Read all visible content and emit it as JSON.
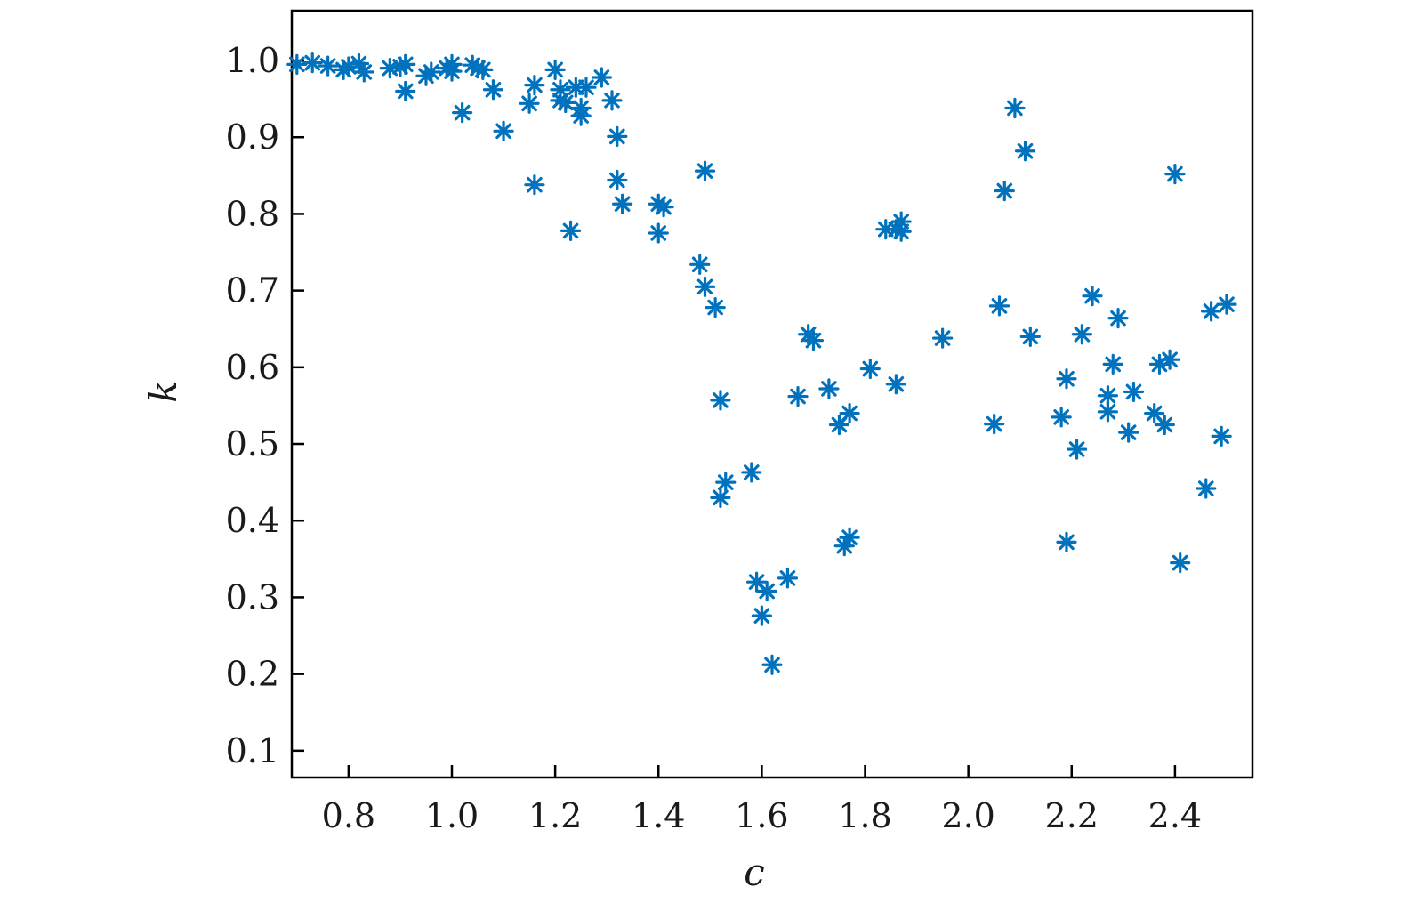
{
  "chart_data": {
    "type": "scatter",
    "title": "",
    "xlabel": "c",
    "ylabel": "k",
    "xlim": [
      0.69,
      2.55
    ],
    "ylim": [
      0.065,
      1.065
    ],
    "grid": false,
    "marker": "asterisk",
    "color": "#0072bd",
    "xticks": [
      0.8,
      1.0,
      1.2,
      1.4,
      1.6,
      1.8,
      2.0,
      2.2,
      2.4
    ],
    "xtick_labels": [
      "0.8",
      "1.0",
      "1.2",
      "1.4",
      "1.6",
      "1.8",
      "2.0",
      "2.2",
      "2.4"
    ],
    "yticks": [
      0.1,
      0.2,
      0.3,
      0.4,
      0.5,
      0.6,
      0.7,
      0.8,
      0.9,
      1.0
    ],
    "ytick_labels": [
      "0.1",
      "0.2",
      "0.3",
      "0.4",
      "0.5",
      "0.6",
      "0.7",
      "0.8",
      "0.9",
      "1.0"
    ],
    "points": [
      [
        0.7,
        0.995
      ],
      [
        0.73,
        0.997
      ],
      [
        0.76,
        0.993
      ],
      [
        0.79,
        0.988
      ],
      [
        0.8,
        0.992
      ],
      [
        0.82,
        0.996
      ],
      [
        0.83,
        0.985
      ],
      [
        0.88,
        0.99
      ],
      [
        0.9,
        0.992
      ],
      [
        0.91,
        0.995
      ],
      [
        0.91,
        0.96
      ],
      [
        0.95,
        0.98
      ],
      [
        0.96,
        0.985
      ],
      [
        0.99,
        0.99
      ],
      [
        1.0,
        0.986
      ],
      [
        1.0,
        0.995
      ],
      [
        1.02,
        0.932
      ],
      [
        1.04,
        0.994
      ],
      [
        1.05,
        0.99
      ],
      [
        1.06,
        0.988
      ],
      [
        1.08,
        0.962
      ],
      [
        1.1,
        0.908
      ],
      [
        1.15,
        0.944
      ],
      [
        1.16,
        0.968
      ],
      [
        1.16,
        0.838
      ],
      [
        1.2,
        0.988
      ],
      [
        1.21,
        0.962
      ],
      [
        1.21,
        0.948
      ],
      [
        1.22,
        0.945
      ],
      [
        1.23,
        0.778
      ],
      [
        1.24,
        0.965
      ],
      [
        1.25,
        0.938
      ],
      [
        1.25,
        0.928
      ],
      [
        1.26,
        0.965
      ],
      [
        1.29,
        0.978
      ],
      [
        1.31,
        0.948
      ],
      [
        1.32,
        0.844
      ],
      [
        1.32,
        0.901
      ],
      [
        1.33,
        0.813
      ],
      [
        1.4,
        0.813
      ],
      [
        1.4,
        0.775
      ],
      [
        1.41,
        0.809
      ],
      [
        1.48,
        0.734
      ],
      [
        1.49,
        0.705
      ],
      [
        1.49,
        0.856
      ],
      [
        1.51,
        0.678
      ],
      [
        1.52,
        0.557
      ],
      [
        1.52,
        0.43
      ],
      [
        1.53,
        0.45
      ],
      [
        1.58,
        0.463
      ],
      [
        1.59,
        0.32
      ],
      [
        1.6,
        0.276
      ],
      [
        1.61,
        0.308
      ],
      [
        1.62,
        0.212
      ],
      [
        1.65,
        0.325
      ],
      [
        1.67,
        0.562
      ],
      [
        1.69,
        0.643
      ],
      [
        1.7,
        0.635
      ],
      [
        1.73,
        0.572
      ],
      [
        1.75,
        0.525
      ],
      [
        1.76,
        0.367
      ],
      [
        1.77,
        0.54
      ],
      [
        1.77,
        0.378
      ],
      [
        1.81,
        0.598
      ],
      [
        1.84,
        0.78
      ],
      [
        1.86,
        0.78
      ],
      [
        1.86,
        0.578
      ],
      [
        1.87,
        0.79
      ],
      [
        1.87,
        0.777
      ],
      [
        1.95,
        0.638
      ],
      [
        2.05,
        0.526
      ],
      [
        2.06,
        0.68
      ],
      [
        2.07,
        0.83
      ],
      [
        2.09,
        0.938
      ],
      [
        2.11,
        0.882
      ],
      [
        2.12,
        0.64
      ],
      [
        2.18,
        0.535
      ],
      [
        2.19,
        0.372
      ],
      [
        2.19,
        0.585
      ],
      [
        2.21,
        0.493
      ],
      [
        2.22,
        0.643
      ],
      [
        2.24,
        0.693
      ],
      [
        2.27,
        0.563
      ],
      [
        2.27,
        0.542
      ],
      [
        2.28,
        0.604
      ],
      [
        2.29,
        0.664
      ],
      [
        2.31,
        0.515
      ],
      [
        2.32,
        0.568
      ],
      [
        2.36,
        0.54
      ],
      [
        2.37,
        0.604
      ],
      [
        2.38,
        0.525
      ],
      [
        2.39,
        0.61
      ],
      [
        2.4,
        0.852
      ],
      [
        2.41,
        0.345
      ],
      [
        2.46,
        0.442
      ],
      [
        2.47,
        0.673
      ],
      [
        2.49,
        0.51
      ],
      [
        2.5,
        0.682
      ]
    ]
  }
}
